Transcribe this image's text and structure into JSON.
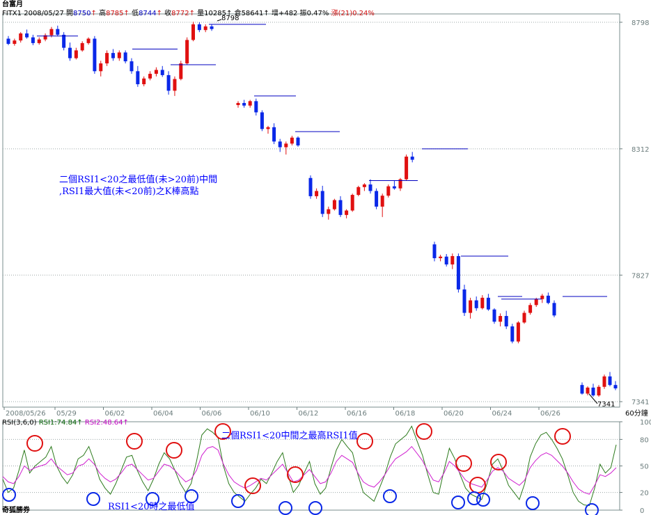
{
  "header": {
    "title": "台富月",
    "symbol": "FITX1",
    "date": "2008/05/27",
    "open_label": "開",
    "open": "8750",
    "high_label": "高",
    "high": "8785",
    "low_label": "低",
    "low": "8744",
    "close_label": "收",
    "close": "8772",
    "volume_label": "量",
    "volume": "10285",
    "oi_label": "倉",
    "oi": "58641",
    "inc_label": "增",
    "inc": "+482",
    "amp_label": "振",
    "amp": "0.47%",
    "chg_label": "漲",
    "chg": "(21)0.24%"
  },
  "price_axis": {
    "ticks": [
      "8798",
      "8312",
      "7827",
      "7341"
    ],
    "unit": "60分鐘"
  },
  "price_labels": {
    "peak": "8798",
    "trough": "7341"
  },
  "date_axis": [
    "2008/05/26",
    "05/29",
    "06/02",
    "06/04",
    "06/06",
    "06/10",
    "06/12",
    "06/16",
    "06/18",
    "06/20",
    "06/24",
    "06/26"
  ],
  "annotations": {
    "main_line1": "二個RSI1<20之最低值(未>20前)中間",
    "main_line2": ",RSI1最大值(未<20前)之K棒高點",
    "rsi_top": "二個RSI1<20中間之最高RSI1值",
    "rsi_bottom": "RSI1<20時之最低值"
  },
  "rsi_panel": {
    "label": "RSI(3,6,0)",
    "rsi1_label": "RSI1:74.84",
    "rsi2_label": "RSI2:48.64",
    "ticks": [
      "100",
      "80",
      "50",
      "20",
      "0"
    ]
  },
  "footer": {
    "brand": "奇狐勝券"
  },
  "colors": {
    "up": "#e01010",
    "down": "#0a28e8",
    "rsi1": "#2c7a1c",
    "rsi2": "#d020d0",
    "grid": "#9aa6a6",
    "axis_text": "#6b7c7c",
    "circle_high": "#e01010",
    "circle_low": "#0a28e8",
    "resistance_line": "#0000c0"
  },
  "chart_data": [
    {
      "type": "candlestick",
      "title": "台富月 FITX1 60分鐘",
      "categories": [
        "2008/05/26",
        "05/29",
        "06/02",
        "06/04",
        "06/06",
        "06/10",
        "06/12",
        "06/16",
        "06/18",
        "06/20",
        "06/24",
        "06/26"
      ],
      "ylim": [
        7320,
        8830
      ],
      "y_ticks": [
        8798,
        8312,
        7827,
        7341
      ],
      "ohlc": [
        [
          8735,
          8745,
          8710,
          8715
        ],
        [
          8715,
          8735,
          8708,
          8728
        ],
        [
          8728,
          8760,
          8720,
          8755
        ],
        [
          8755,
          8770,
          8735,
          8740
        ],
        [
          8740,
          8750,
          8710,
          8718
        ],
        [
          8718,
          8740,
          8712,
          8732
        ],
        [
          8732,
          8755,
          8725,
          8748
        ],
        [
          8748,
          8780,
          8740,
          8772
        ],
        [
          8772,
          8785,
          8744,
          8750
        ],
        [
          8750,
          8760,
          8690,
          8700
        ],
        [
          8700,
          8720,
          8650,
          8660
        ],
        [
          8660,
          8700,
          8655,
          8690
        ],
        [
          8690,
          8725,
          8685,
          8718
        ],
        [
          8718,
          8740,
          8712,
          8735
        ],
        [
          8735,
          8745,
          8600,
          8610
        ],
        [
          8610,
          8650,
          8590,
          8640
        ],
        [
          8640,
          8690,
          8630,
          8680
        ],
        [
          8680,
          8695,
          8650,
          8660
        ],
        [
          8660,
          8690,
          8650,
          8682
        ],
        [
          8682,
          8690,
          8640,
          8648
        ],
        [
          8648,
          8660,
          8600,
          8610
        ],
        [
          8610,
          8630,
          8550,
          8560
        ],
        [
          8560,
          8590,
          8552,
          8582
        ],
        [
          8582,
          8610,
          8575,
          8600
        ],
        [
          8600,
          8625,
          8590,
          8615
        ],
        [
          8615,
          8630,
          8588,
          8595
        ],
        [
          8595,
          8610,
          8520,
          8535
        ],
        [
          8535,
          8590,
          8515,
          8580
        ],
        [
          8580,
          8650,
          8575,
          8640
        ],
        [
          8640,
          8740,
          8635,
          8730
        ],
        [
          8730,
          8800,
          8725,
          8790
        ],
        [
          8790,
          8798,
          8760,
          8768
        ],
        [
          8768,
          8790,
          8760,
          8782
        ],
        [
          8782,
          8790,
          8765,
          8772
        ],
        [
          8480,
          8495,
          8470,
          8488
        ],
        [
          8488,
          8500,
          8470,
          8478
        ],
        [
          8478,
          8500,
          8470,
          8495
        ],
        [
          8495,
          8505,
          8440,
          8452
        ],
        [
          8452,
          8460,
          8380,
          8388
        ],
        [
          8388,
          8400,
          8370,
          8395
        ],
        [
          8395,
          8410,
          8330,
          8340
        ],
        [
          8340,
          8350,
          8300,
          8318
        ],
        [
          8318,
          8340,
          8290,
          8332
        ],
        [
          8332,
          8362,
          8325,
          8355
        ],
        [
          8355,
          8360,
          8320,
          8325
        ],
        [
          8200,
          8210,
          8120,
          8130
        ],
        [
          8130,
          8160,
          8120,
          8150
        ],
        [
          8150,
          8170,
          8050,
          8062
        ],
        [
          8062,
          8090,
          8040,
          8080
        ],
        [
          8080,
          8120,
          8075,
          8115
        ],
        [
          8115,
          8130,
          8050,
          8058
        ],
        [
          8058,
          8080,
          8045,
          8075
        ],
        [
          8075,
          8140,
          8070,
          8135
        ],
        [
          8135,
          8170,
          8130,
          8165
        ],
        [
          8165,
          8180,
          8150,
          8175
        ],
        [
          8175,
          8195,
          8140,
          8150
        ],
        [
          8150,
          8160,
          8080,
          8090
        ],
        [
          8090,
          8140,
          8050,
          8132
        ],
        [
          8132,
          8175,
          8125,
          8168
        ],
        [
          8168,
          8190,
          8155,
          8160
        ],
        [
          8160,
          8200,
          8150,
          8195
        ],
        [
          8195,
          8290,
          8190,
          8282
        ],
        [
          8282,
          8300,
          8260,
          8270
        ],
        [
          7945,
          7955,
          7880,
          7892
        ],
        [
          7892,
          7905,
          7880,
          7898
        ],
        [
          7898,
          7908,
          7860,
          7868
        ],
        [
          7868,
          7910,
          7850,
          7900
        ],
        [
          7900,
          7910,
          7760,
          7772
        ],
        [
          7772,
          7790,
          7670,
          7682
        ],
        [
          7682,
          7740,
          7660,
          7730
        ],
        [
          7730,
          7745,
          7690,
          7700
        ],
        [
          7700,
          7750,
          7695,
          7740
        ],
        [
          7740,
          7755,
          7690,
          7695
        ],
        [
          7695,
          7700,
          7640,
          7648
        ],
        [
          7648,
          7680,
          7630,
          7670
        ],
        [
          7670,
          7690,
          7620,
          7630
        ],
        [
          7630,
          7640,
          7565,
          7572
        ],
        [
          7572,
          7650,
          7565,
          7645
        ],
        [
          7645,
          7690,
          7640,
          7682
        ],
        [
          7682,
          7720,
          7675,
          7712
        ],
        [
          7712,
          7740,
          7705,
          7735
        ],
        [
          7735,
          7755,
          7720,
          7748
        ],
        [
          7748,
          7760,
          7715,
          7720
        ],
        [
          7720,
          7730,
          7665,
          7672
        ],
        [
          7405,
          7415,
          7368,
          7372
        ],
        [
          7372,
          7400,
          7365,
          7395
        ],
        [
          7395,
          7410,
          7360,
          7365
        ],
        [
          7365,
          7405,
          7360,
          7398
        ],
        [
          7398,
          7445,
          7390,
          7438
        ],
        [
          7438,
          7455,
          7400,
          7405
        ],
        [
          7405,
          7420,
          7385,
          7392
        ]
      ]
    },
    {
      "type": "line",
      "title": "RSI(3,6,0)",
      "ylim": [
        0,
        100
      ],
      "series": [
        {
          "name": "RSI1",
          "values": [
            35,
            20,
            25,
            45,
            68,
            42,
            50,
            55,
            60,
            72,
            50,
            38,
            30,
            40,
            58,
            62,
            72,
            55,
            35,
            25,
            18,
            30,
            45,
            60,
            62,
            45,
            32,
            22,
            35,
            52,
            65,
            58,
            45,
            30,
            20,
            30,
            55,
            85,
            92,
            88,
            82,
            50,
            30,
            20,
            15,
            10,
            18,
            25,
            35,
            30,
            42,
            55,
            65,
            40,
            20,
            28,
            42,
            55,
            30,
            18,
            25,
            48,
            68,
            80,
            72,
            65,
            40,
            20,
            15,
            10,
            25,
            40,
            60,
            75,
            80,
            85,
            95,
            78,
            62,
            40,
            20,
            18,
            45,
            70,
            58,
            40,
            25,
            18,
            15,
            12,
            30,
            52,
            58,
            45,
            28,
            20,
            12,
            30,
            60,
            75,
            85,
            88,
            80,
            70,
            58,
            40,
            20,
            10,
            6,
            5,
            25,
            52,
            42,
            48,
            74
          ]
        },
        {
          "name": "RSI2",
          "values": [
            38,
            32,
            30,
            38,
            50,
            45,
            48,
            50,
            52,
            58,
            50,
            45,
            40,
            42,
            50,
            52,
            58,
            52,
            42,
            36,
            32,
            35,
            42,
            50,
            52,
            46,
            40,
            34,
            36,
            44,
            52,
            50,
            45,
            38,
            32,
            35,
            45,
            62,
            70,
            72,
            68,
            52,
            40,
            32,
            28,
            25,
            28,
            32,
            36,
            34,
            40,
            46,
            52,
            42,
            32,
            34,
            40,
            46,
            38,
            30,
            32,
            42,
            55,
            62,
            58,
            54,
            42,
            32,
            28,
            26,
            32,
            40,
            50,
            58,
            62,
            66,
            72,
            64,
            56,
            44,
            34,
            32,
            42,
            55,
            50,
            42,
            34,
            30,
            28,
            26,
            34,
            44,
            48,
            44,
            36,
            32,
            28,
            34,
            48,
            56,
            62,
            65,
            62,
            56,
            50,
            42,
            32,
            24,
            20,
            18,
            28,
            40,
            38,
            42,
            48
          ]
        }
      ],
      "legend": [
        "RSI1:74.84",
        "RSI2:48.64"
      ],
      "annotations": [
        "二個RSI1<20中間之最高RSI1值",
        "RSI1<20時之最低值"
      ]
    }
  ]
}
